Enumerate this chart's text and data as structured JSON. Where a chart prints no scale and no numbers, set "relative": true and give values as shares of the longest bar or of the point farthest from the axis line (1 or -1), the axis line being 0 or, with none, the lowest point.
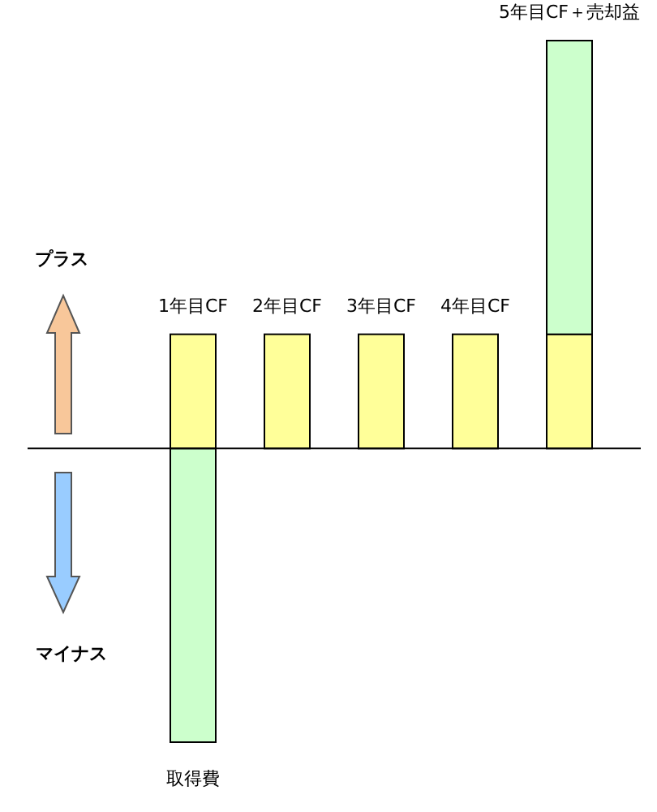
{
  "chart_data": {
    "type": "bar",
    "relative": true,
    "stacked": true,
    "categories": [
      "1年目CF",
      "2年目CF",
      "3年目CF",
      "4年目CF",
      "5年目CF＋売却益"
    ],
    "series": [
      {
        "color": "#ffff99",
        "values": [
          0.28,
          0.28,
          0.28,
          0.28,
          0.28
        ]
      },
      {
        "color": "#ccffcc",
        "values": [
          -0.72,
          null,
          null,
          null,
          0.72
        ]
      }
    ],
    "annotations": [
      {
        "text": "取得費",
        "x": "1年目CF",
        "y": -0.72
      },
      "プラス",
      "マイナス"
    ]
  }
}
